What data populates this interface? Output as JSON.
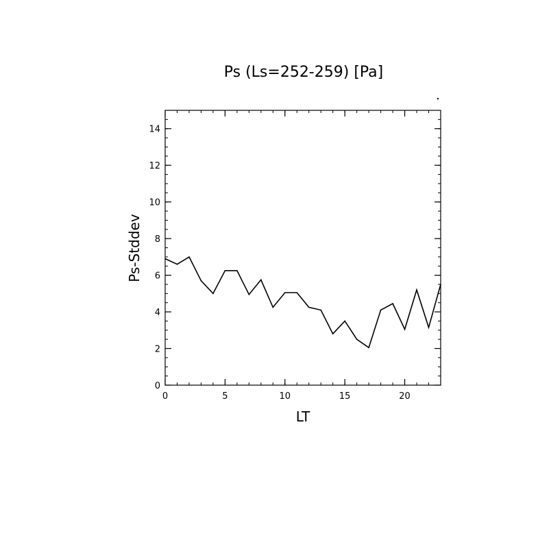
{
  "chart_data": {
    "type": "line",
    "title": "Ps (Ls=252-259) [Pa]",
    "xlabel": "LT",
    "ylabel": "Ps-Stddev",
    "xlim": [
      0,
      23
    ],
    "ylim": [
      0,
      15
    ],
    "x_ticks": [
      0,
      5,
      10,
      15,
      20
    ],
    "y_ticks": [
      0,
      2,
      4,
      6,
      8,
      10,
      12,
      14
    ],
    "grid": false,
    "series": [
      {
        "x": [
          0,
          1,
          2,
          3,
          4,
          5,
          6,
          7,
          8,
          9,
          10,
          11,
          12,
          13,
          14,
          15,
          16,
          17,
          18,
          19,
          20,
          21,
          22,
          23
        ],
        "values": [
          6.9,
          6.6,
          7.0,
          5.7,
          5.0,
          6.25,
          6.25,
          4.95,
          5.75,
          4.25,
          5.05,
          5.05,
          4.25,
          4.1,
          2.8,
          3.5,
          2.5,
          2.05,
          4.1,
          4.45,
          3.05,
          5.2,
          3.15,
          5.5
        ],
        "color": "#000000"
      }
    ]
  }
}
